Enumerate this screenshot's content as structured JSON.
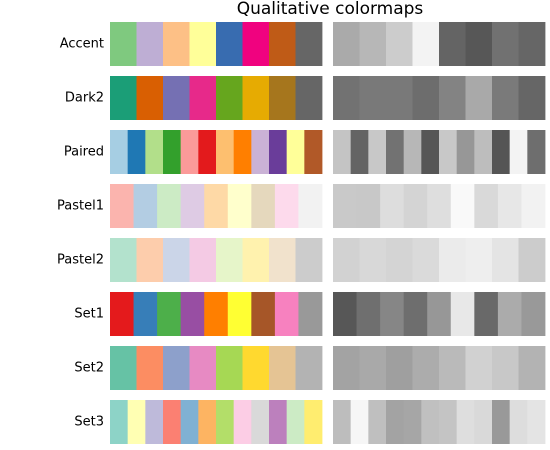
{
  "chart_data": {
    "type": "colormap-strips",
    "title": "Qualitative colormaps",
    "colormaps": [
      {
        "name": "Accent",
        "colors": [
          "#7fc97f",
          "#beaed4",
          "#fdc086",
          "#ffff99",
          "#386cb0",
          "#f0027f",
          "#bf5b17",
          "#666666"
        ]
      },
      {
        "name": "Dark2",
        "colors": [
          "#1b9e77",
          "#d95f02",
          "#7570b3",
          "#e7298a",
          "#66a61e",
          "#e6ab02",
          "#a6761d",
          "#666666"
        ]
      },
      {
        "name": "Paired",
        "colors": [
          "#a6cee3",
          "#1f78b4",
          "#b2df8a",
          "#33a02c",
          "#fb9a99",
          "#e31a1c",
          "#fdbf6f",
          "#ff7f00",
          "#cab2d6",
          "#6a3d9a",
          "#ffff99",
          "#b15928"
        ]
      },
      {
        "name": "Pastel1",
        "colors": [
          "#fbb4ae",
          "#b3cde3",
          "#ccebc5",
          "#decbe4",
          "#fed9a6",
          "#ffffcc",
          "#e5d8bd",
          "#fddaec",
          "#f2f2f2"
        ]
      },
      {
        "name": "Pastel2",
        "colors": [
          "#b3e2cd",
          "#fdcdac",
          "#cbd5e8",
          "#f4cae4",
          "#e6f5c9",
          "#fff2ae",
          "#f1e2cc",
          "#cccccc"
        ]
      },
      {
        "name": "Set1",
        "colors": [
          "#e41a1c",
          "#377eb8",
          "#4daf4a",
          "#984ea3",
          "#ff7f00",
          "#ffff33",
          "#a65628",
          "#f781bf",
          "#999999"
        ]
      },
      {
        "name": "Set2",
        "colors": [
          "#66c2a5",
          "#fc8d62",
          "#8da0cb",
          "#e78ac3",
          "#a6d854",
          "#ffd92f",
          "#e5c494",
          "#b3b3b3"
        ]
      },
      {
        "name": "Set3",
        "colors": [
          "#8dd3c7",
          "#ffffb3",
          "#bebada",
          "#fb8072",
          "#80b1d3",
          "#fdb462",
          "#b3de69",
          "#fccde5",
          "#d9d9d9",
          "#bc80bd",
          "#ccebc5",
          "#ffed6f"
        ]
      }
    ]
  }
}
